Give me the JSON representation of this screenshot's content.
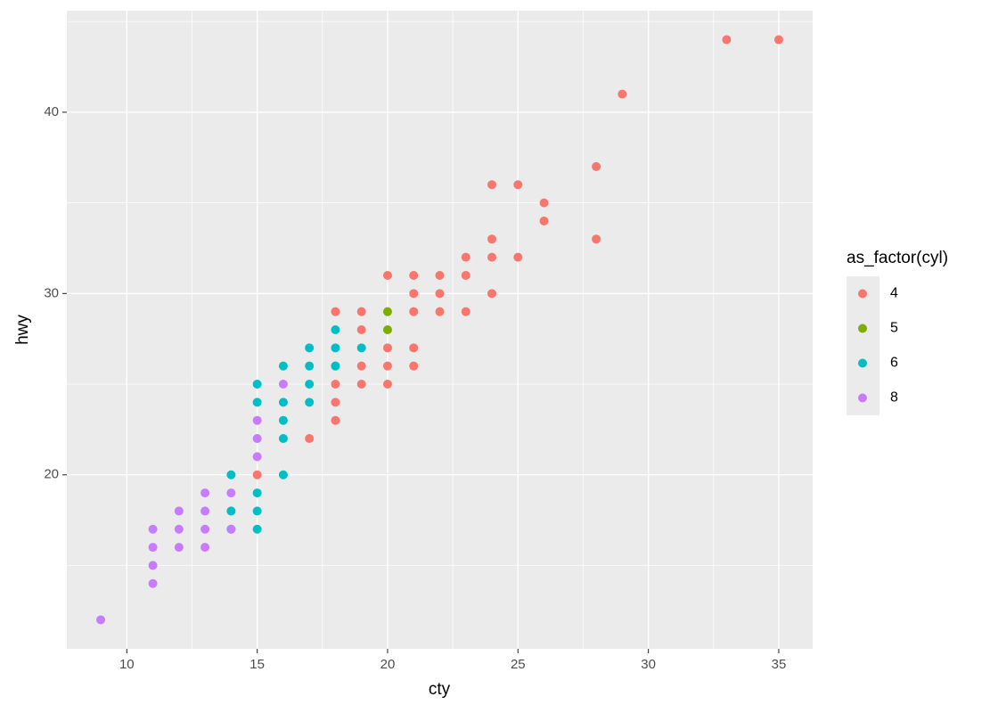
{
  "chart_data": {
    "type": "scatter",
    "x_label": "cty",
    "y_label": "hwy",
    "legend_title": "as_factor(cyl)",
    "xlim": [
      7.7,
      36.3
    ],
    "ylim": [
      10.4,
      45.6
    ],
    "xticks": [
      10,
      15,
      20,
      25,
      30,
      35
    ],
    "yticks": [
      20,
      30,
      40
    ],
    "grid": true,
    "legend": "right",
    "series": [
      {
        "name": "4",
        "color": "#F8766D",
        "x": [
          35,
          33,
          29,
          28,
          28,
          26,
          26,
          25,
          25,
          24,
          24,
          24,
          24,
          23,
          23,
          23,
          22,
          22,
          22,
          21,
          21,
          21,
          21,
          21,
          20,
          20,
          20,
          20,
          19,
          19,
          19,
          19,
          18,
          18,
          18,
          18,
          18,
          17,
          15
        ],
        "values": [
          44,
          44,
          41,
          37,
          33,
          35,
          34,
          36,
          32,
          36,
          33,
          32,
          30,
          32,
          31,
          29,
          31,
          30,
          29,
          31,
          30,
          29,
          27,
          26,
          31,
          27,
          26,
          25,
          29,
          28,
          26,
          25,
          29,
          26,
          25,
          24,
          23,
          22,
          20
        ]
      },
      {
        "name": "5",
        "color": "#7CAE00",
        "x": [
          20,
          20
        ],
        "values": [
          29,
          28
        ]
      },
      {
        "name": "6",
        "color": "#00BFC4",
        "x": [
          18,
          18,
          18,
          19,
          17,
          17,
          17,
          17,
          16,
          16,
          16,
          16,
          16,
          15,
          15,
          15,
          15,
          15,
          14,
          14,
          14
        ],
        "values": [
          28,
          27,
          26,
          27,
          27,
          26,
          25,
          24,
          26,
          24,
          23,
          22,
          20,
          25,
          24,
          19,
          18,
          17,
          20,
          18,
          17
        ]
      },
      {
        "name": "8",
        "color": "#C77CFF",
        "x": [
          9,
          11,
          11,
          11,
          11,
          12,
          12,
          12,
          13,
          13,
          13,
          13,
          14,
          14,
          15,
          15,
          15,
          16
        ],
        "values": [
          12,
          17,
          16,
          15,
          14,
          18,
          17,
          16,
          19,
          18,
          17,
          16,
          19,
          17,
          23,
          22,
          21,
          25
        ]
      }
    ]
  }
}
